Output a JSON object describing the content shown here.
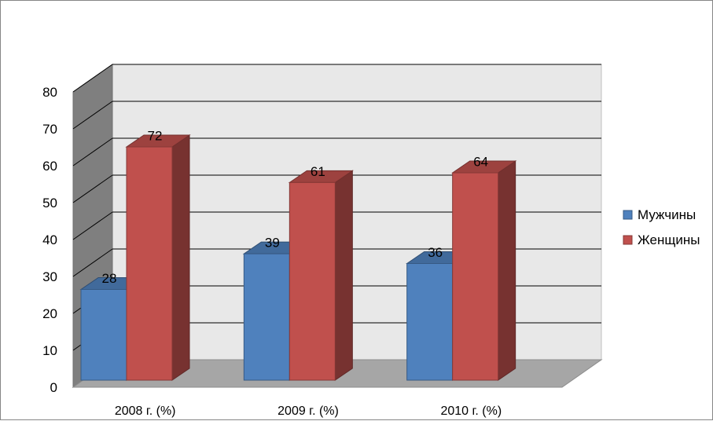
{
  "chart_data": {
    "type": "bar",
    "categories": [
      "2008 г. (%)",
      "2009 г. (%)",
      "2010 г. (%)"
    ],
    "series": [
      {
        "name": "Мужчины",
        "values": [
          28,
          39,
          36
        ],
        "color": "#4F81BD"
      },
      {
        "name": "Женщины",
        "values": [
          72,
          61,
          64
        ],
        "color": "#C0504D"
      }
    ],
    "ylim": [
      0,
      80
    ],
    "yticks": [
      0,
      10,
      20,
      30,
      40,
      50,
      60,
      70,
      80
    ],
    "grid": true,
    "legend": "right",
    "style": "3d-clustered-column",
    "colors": {
      "wall": "#E8E8E8",
      "side_wall": "#7F7F7F",
      "floor": "#A6A6A6",
      "gridline": "#000000"
    }
  }
}
